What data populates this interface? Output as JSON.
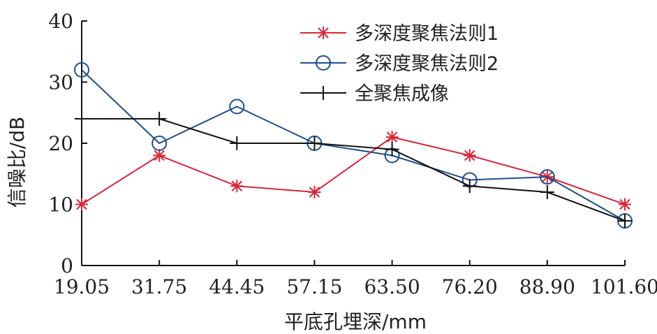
{
  "chart_data": {
    "type": "line",
    "categories": [
      "19.05",
      "31.75",
      "44.45",
      "57.15",
      "63.50",
      "76.20",
      "88.90",
      "101.60"
    ],
    "xlabel": "平底孔埋深/mm",
    "ylabel": "信噪比/dB",
    "ylim": [
      0,
      40
    ],
    "yticks": [
      0,
      10,
      20,
      30,
      40
    ],
    "grid": false,
    "legend_position": "top-right",
    "series": [
      {
        "name": "多深度聚焦法则1",
        "color": "#d7263d",
        "marker": "asterisk",
        "values": [
          10,
          18,
          13,
          12,
          21,
          18,
          14.5,
          10
        ]
      },
      {
        "name": "多深度聚焦法则2",
        "color": "#1f4e8c",
        "marker": "circle",
        "values": [
          32,
          20,
          26,
          20,
          18,
          14,
          14.5,
          7.3
        ]
      },
      {
        "name": "全聚焦成像",
        "color": "#111111",
        "marker": "plus",
        "values": [
          24,
          24,
          20,
          20,
          19,
          13,
          12,
          7.3
        ]
      }
    ]
  }
}
